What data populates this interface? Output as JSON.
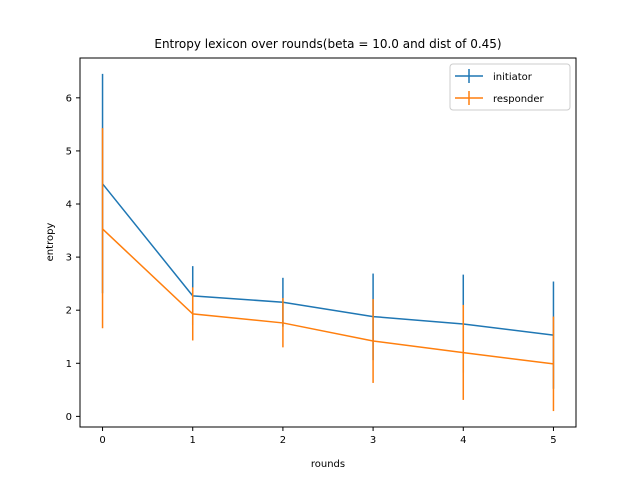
{
  "chart_data": {
    "type": "line",
    "title": "Entropy lexicon over rounds(beta = 10.0 and dist of 0.45)",
    "xlabel": "rounds",
    "ylabel": "entropy",
    "x": [
      0,
      1,
      2,
      3,
      4,
      5
    ],
    "xlim": [
      -0.25,
      5.25
    ],
    "ylim": [
      -0.2,
      6.75
    ],
    "xticks": [
      "0",
      "1",
      "2",
      "3",
      "4",
      "5"
    ],
    "yticks": [
      "0",
      "1",
      "2",
      "3",
      "4",
      "5",
      "6"
    ],
    "grid": false,
    "legend_position": "top-right",
    "series": [
      {
        "name": "initiator",
        "color": "#1f77b4",
        "values": [
          4.38,
          2.27,
          2.15,
          1.88,
          1.74,
          1.53
        ],
        "err_low": [
          2.32,
          1.72,
          1.69,
          1.06,
          0.82,
          0.52
        ],
        "err_high": [
          6.45,
          2.83,
          2.61,
          2.69,
          2.67,
          2.54
        ]
      },
      {
        "name": "responder",
        "color": "#ff7f0e",
        "values": [
          3.53,
          1.93,
          1.76,
          1.42,
          1.2,
          0.99
        ],
        "err_low": [
          1.66,
          1.43,
          1.3,
          0.63,
          0.31,
          0.1
        ],
        "err_high": [
          5.43,
          2.43,
          2.23,
          2.21,
          2.1,
          1.88
        ]
      }
    ]
  }
}
